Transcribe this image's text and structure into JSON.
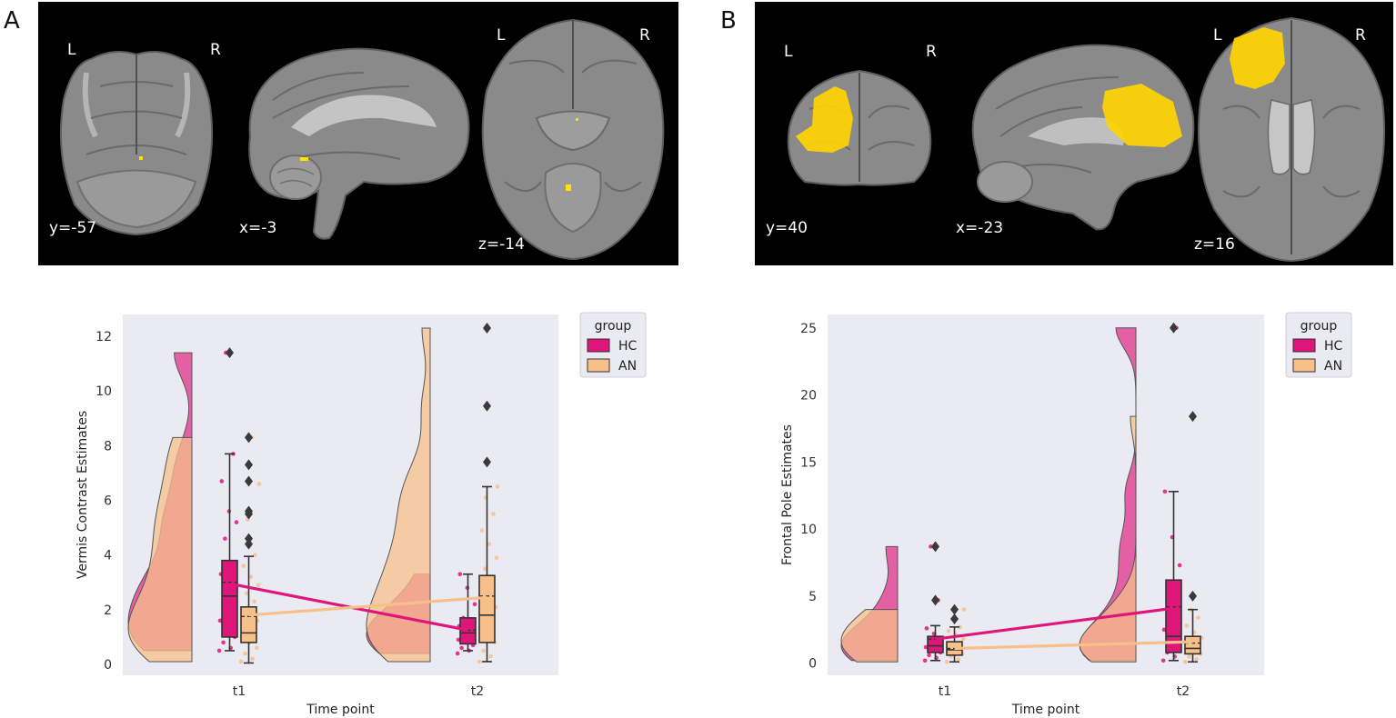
{
  "panels": [
    {
      "label": "A",
      "brain": {
        "orient_left": "L",
        "orient_right": "R",
        "slices": [
          {
            "view": "coronal",
            "coord": "y=-57",
            "lr": [
              "L",
              "R"
            ]
          },
          {
            "view": "sagittal",
            "coord": "x=-3",
            "lr": []
          },
          {
            "view": "axial",
            "coord": "z=-14",
            "lr": [
              "L",
              "R"
            ]
          }
        ]
      }
    },
    {
      "label": "B",
      "brain": {
        "orient_left": "L",
        "orient_right": "R",
        "slices": [
          {
            "view": "coronal",
            "coord": "y=40",
            "lr": [
              "L",
              "R"
            ]
          },
          {
            "view": "sagittal",
            "coord": "x=-23",
            "lr": []
          },
          {
            "view": "axial",
            "coord": "z=16",
            "lr": [
              "L",
              "R"
            ]
          }
        ]
      }
    }
  ],
  "colors": {
    "HC": "#e0157a",
    "AN": "#f7c08a",
    "plot_bg": "#eaeaf2"
  },
  "chart_data": [
    {
      "type": "raincloud",
      "xlabel": "Time point",
      "ylabel": "Vermis Contrast Estimates",
      "categories": [
        "t1",
        "t2"
      ],
      "ylim": [
        -0.4,
        12.8
      ],
      "yticks": [
        0,
        2,
        4,
        6,
        8,
        10,
        12
      ],
      "grid": false,
      "legend": {
        "title": "group",
        "position": "outside-top-right",
        "entries": [
          "HC",
          "AN"
        ]
      },
      "series": [
        {
          "name": "HC",
          "box": [
            {
              "x": "t1",
              "whislo": 0.5,
              "q1": 1.0,
              "median": 2.5,
              "mean": 3.0,
              "q3": 3.8,
              "whishi": 7.7,
              "fliers": [
                11.4
              ]
            },
            {
              "x": "t2",
              "whislo": 0.5,
              "q1": 0.75,
              "median": 1.15,
              "mean": 1.25,
              "q3": 1.7,
              "whishi": 3.3,
              "fliers": []
            }
          ],
          "mean_line": [
            2.95,
            1.25
          ],
          "points": [
            [
              0.5,
              0.6,
              0.8,
              1.0,
              1.3,
              1.6,
              2.0,
              2.3,
              2.6,
              2.9,
              3.3,
              3.7,
              4.6,
              5.2,
              5.6,
              6.7,
              7.7,
              11.4
            ],
            [
              0.4,
              0.5,
              0.6,
              0.7,
              0.8,
              0.9,
              1.0,
              1.1,
              1.2,
              1.3,
              1.4,
              1.5,
              1.7,
              2.2,
              2.8,
              3.3
            ]
          ]
        },
        {
          "name": "AN",
          "box": [
            {
              "x": "t1",
              "whislo": 0.05,
              "q1": 0.8,
              "median": 1.15,
              "mean": 1.75,
              "q3": 2.1,
              "whishi": 3.95,
              "fliers": [
                4.4,
                4.6,
                5.5,
                5.6,
                6.7,
                7.3,
                8.3
              ]
            },
            {
              "x": "t2",
              "whislo": 0.1,
              "q1": 0.8,
              "median": 1.8,
              "mean": 2.5,
              "q3": 3.25,
              "whishi": 6.5,
              "fliers": [
                7.4,
                9.45,
                12.3
              ]
            }
          ],
          "mean_line": [
            1.8,
            2.45
          ],
          "points": [
            [
              0.1,
              0.2,
              0.4,
              0.6,
              0.8,
              1.0,
              1.2,
              1.4,
              1.6,
              1.8,
              2.0,
              2.3,
              2.6,
              2.9,
              3.2,
              3.6,
              4.0,
              5.3,
              6.6,
              8.3
            ],
            [
              0.1,
              0.3,
              0.5,
              0.8,
              1.0,
              1.3,
              1.6,
              1.8,
              2.1,
              2.4,
              2.8,
              3.1,
              3.5,
              3.9,
              4.4,
              4.9,
              5.5,
              6.1,
              6.5
            ]
          ]
        }
      ]
    },
    {
      "type": "raincloud",
      "xlabel": "Time point",
      "ylabel": "Frontal Pole  Estimates",
      "categories": [
        "t1",
        "t2"
      ],
      "ylim": [
        -0.9,
        26.0
      ],
      "yticks": [
        0,
        5,
        10,
        15,
        20,
        25
      ],
      "grid": false,
      "legend": {
        "title": "group",
        "position": "outside-top-right",
        "entries": [
          "HC",
          "AN"
        ]
      },
      "series": [
        {
          "name": "HC",
          "box": [
            {
              "x": "t1",
              "whislo": 0.2,
              "q1": 0.8,
              "median": 1.3,
              "mean": 1.8,
              "q3": 2.0,
              "whishi": 2.8,
              "fliers": [
                4.7,
                8.7
              ]
            },
            {
              "x": "t2",
              "whislo": 0.2,
              "q1": 0.8,
              "median": 2.0,
              "mean": 4.2,
              "q3": 6.2,
              "whishi": 12.8,
              "fliers": [
                25.0
              ]
            }
          ],
          "mean_line": [
            1.8,
            4.1
          ],
          "points": [
            [
              0.2,
              0.4,
              0.6,
              0.8,
              1.0,
              1.2,
              1.4,
              1.6,
              1.9,
              2.2,
              2.6,
              4.7,
              8.7
            ],
            [
              0.2,
              0.5,
              0.8,
              1.2,
              1.8,
              2.5,
              3.5,
              5.0,
              7.3,
              9.4,
              12.8,
              25.0
            ]
          ]
        },
        {
          "name": "AN",
          "box": [
            {
              "x": "t1",
              "whislo": 0.1,
              "q1": 0.6,
              "median": 1.0,
              "mean": 1.1,
              "q3": 1.6,
              "whishi": 2.7,
              "fliers": [
                3.3,
                4.0
              ]
            },
            {
              "x": "t2",
              "whislo": 0.1,
              "q1": 0.7,
              "median": 1.1,
              "mean": 1.5,
              "q3": 2.0,
              "whishi": 4.0,
              "fliers": [
                5.0,
                18.4
              ]
            }
          ],
          "mean_line": [
            1.1,
            1.6
          ],
          "points": [
            [
              0.1,
              0.3,
              0.5,
              0.7,
              0.9,
              1.1,
              1.3,
              1.5,
              1.8,
              2.1,
              2.4,
              2.7,
              3.3,
              4.0
            ],
            [
              0.1,
              0.3,
              0.5,
              0.7,
              0.9,
              1.1,
              1.3,
              1.6,
              1.9,
              2.3,
              2.8,
              3.4,
              4.0
            ]
          ]
        }
      ]
    }
  ]
}
